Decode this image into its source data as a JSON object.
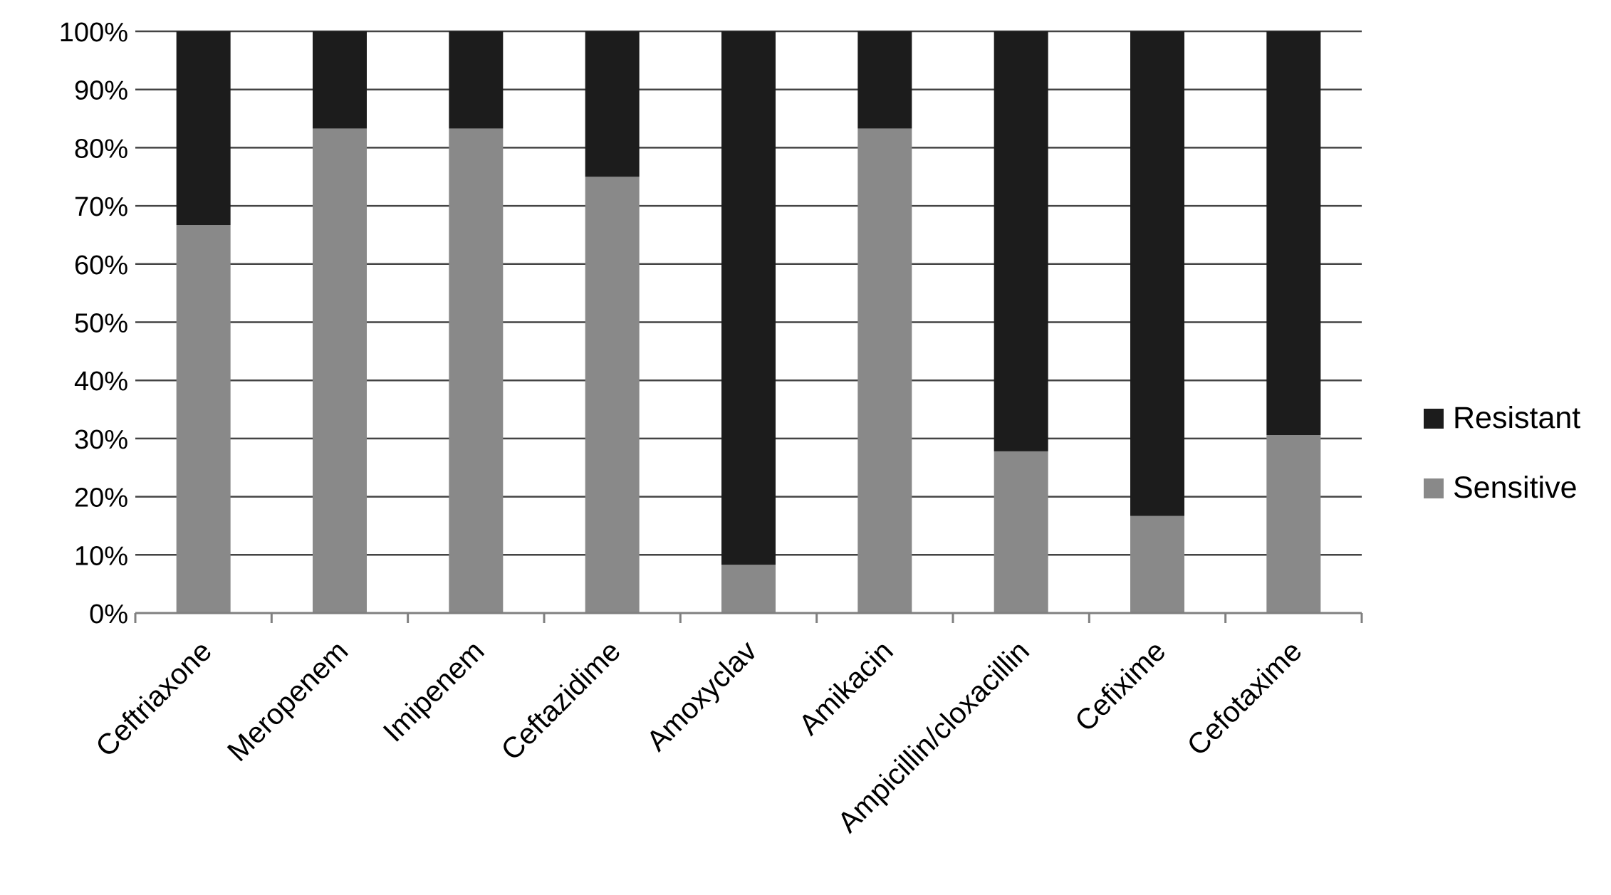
{
  "chart_data": {
    "type": "bar",
    "stacked": true,
    "percent_stacked": true,
    "title": "",
    "xlabel": "",
    "ylabel": "",
    "ylim": [
      0,
      100
    ],
    "ytick_values": [
      0,
      10,
      20,
      30,
      40,
      50,
      60,
      70,
      80,
      90,
      100
    ],
    "ytick_labels": [
      "0%",
      "10%",
      "20%",
      "30%",
      "40%",
      "50%",
      "60%",
      "70%",
      "80%",
      "90%",
      "100%"
    ],
    "grid": "horizontal",
    "legend_position": "right",
    "categories": [
      "Ceftriaxone",
      "Meropenem",
      "Imipenem",
      "Ceftazidime",
      "Amoxyclav",
      "Amikacin",
      "Ampicillin/cloxacillin",
      "Cefixime",
      "Cefotaxime"
    ],
    "series": [
      {
        "name": "Sensitive",
        "color": "#898989",
        "values": [
          66.7,
          83.3,
          83.3,
          75.0,
          8.3,
          83.3,
          27.8,
          16.7,
          30.6
        ]
      },
      {
        "name": "Resistant",
        "color": "#1c1c1c",
        "values": [
          33.3,
          16.7,
          16.7,
          25.0,
          91.7,
          16.7,
          72.2,
          83.3,
          69.4
        ]
      }
    ],
    "legend": [
      {
        "name": "Resistant",
        "color": "#1c1c1c"
      },
      {
        "name": "Sensitive",
        "color": "#898989"
      }
    ],
    "axis_color": "#808080",
    "gridline_color": "#444444"
  }
}
